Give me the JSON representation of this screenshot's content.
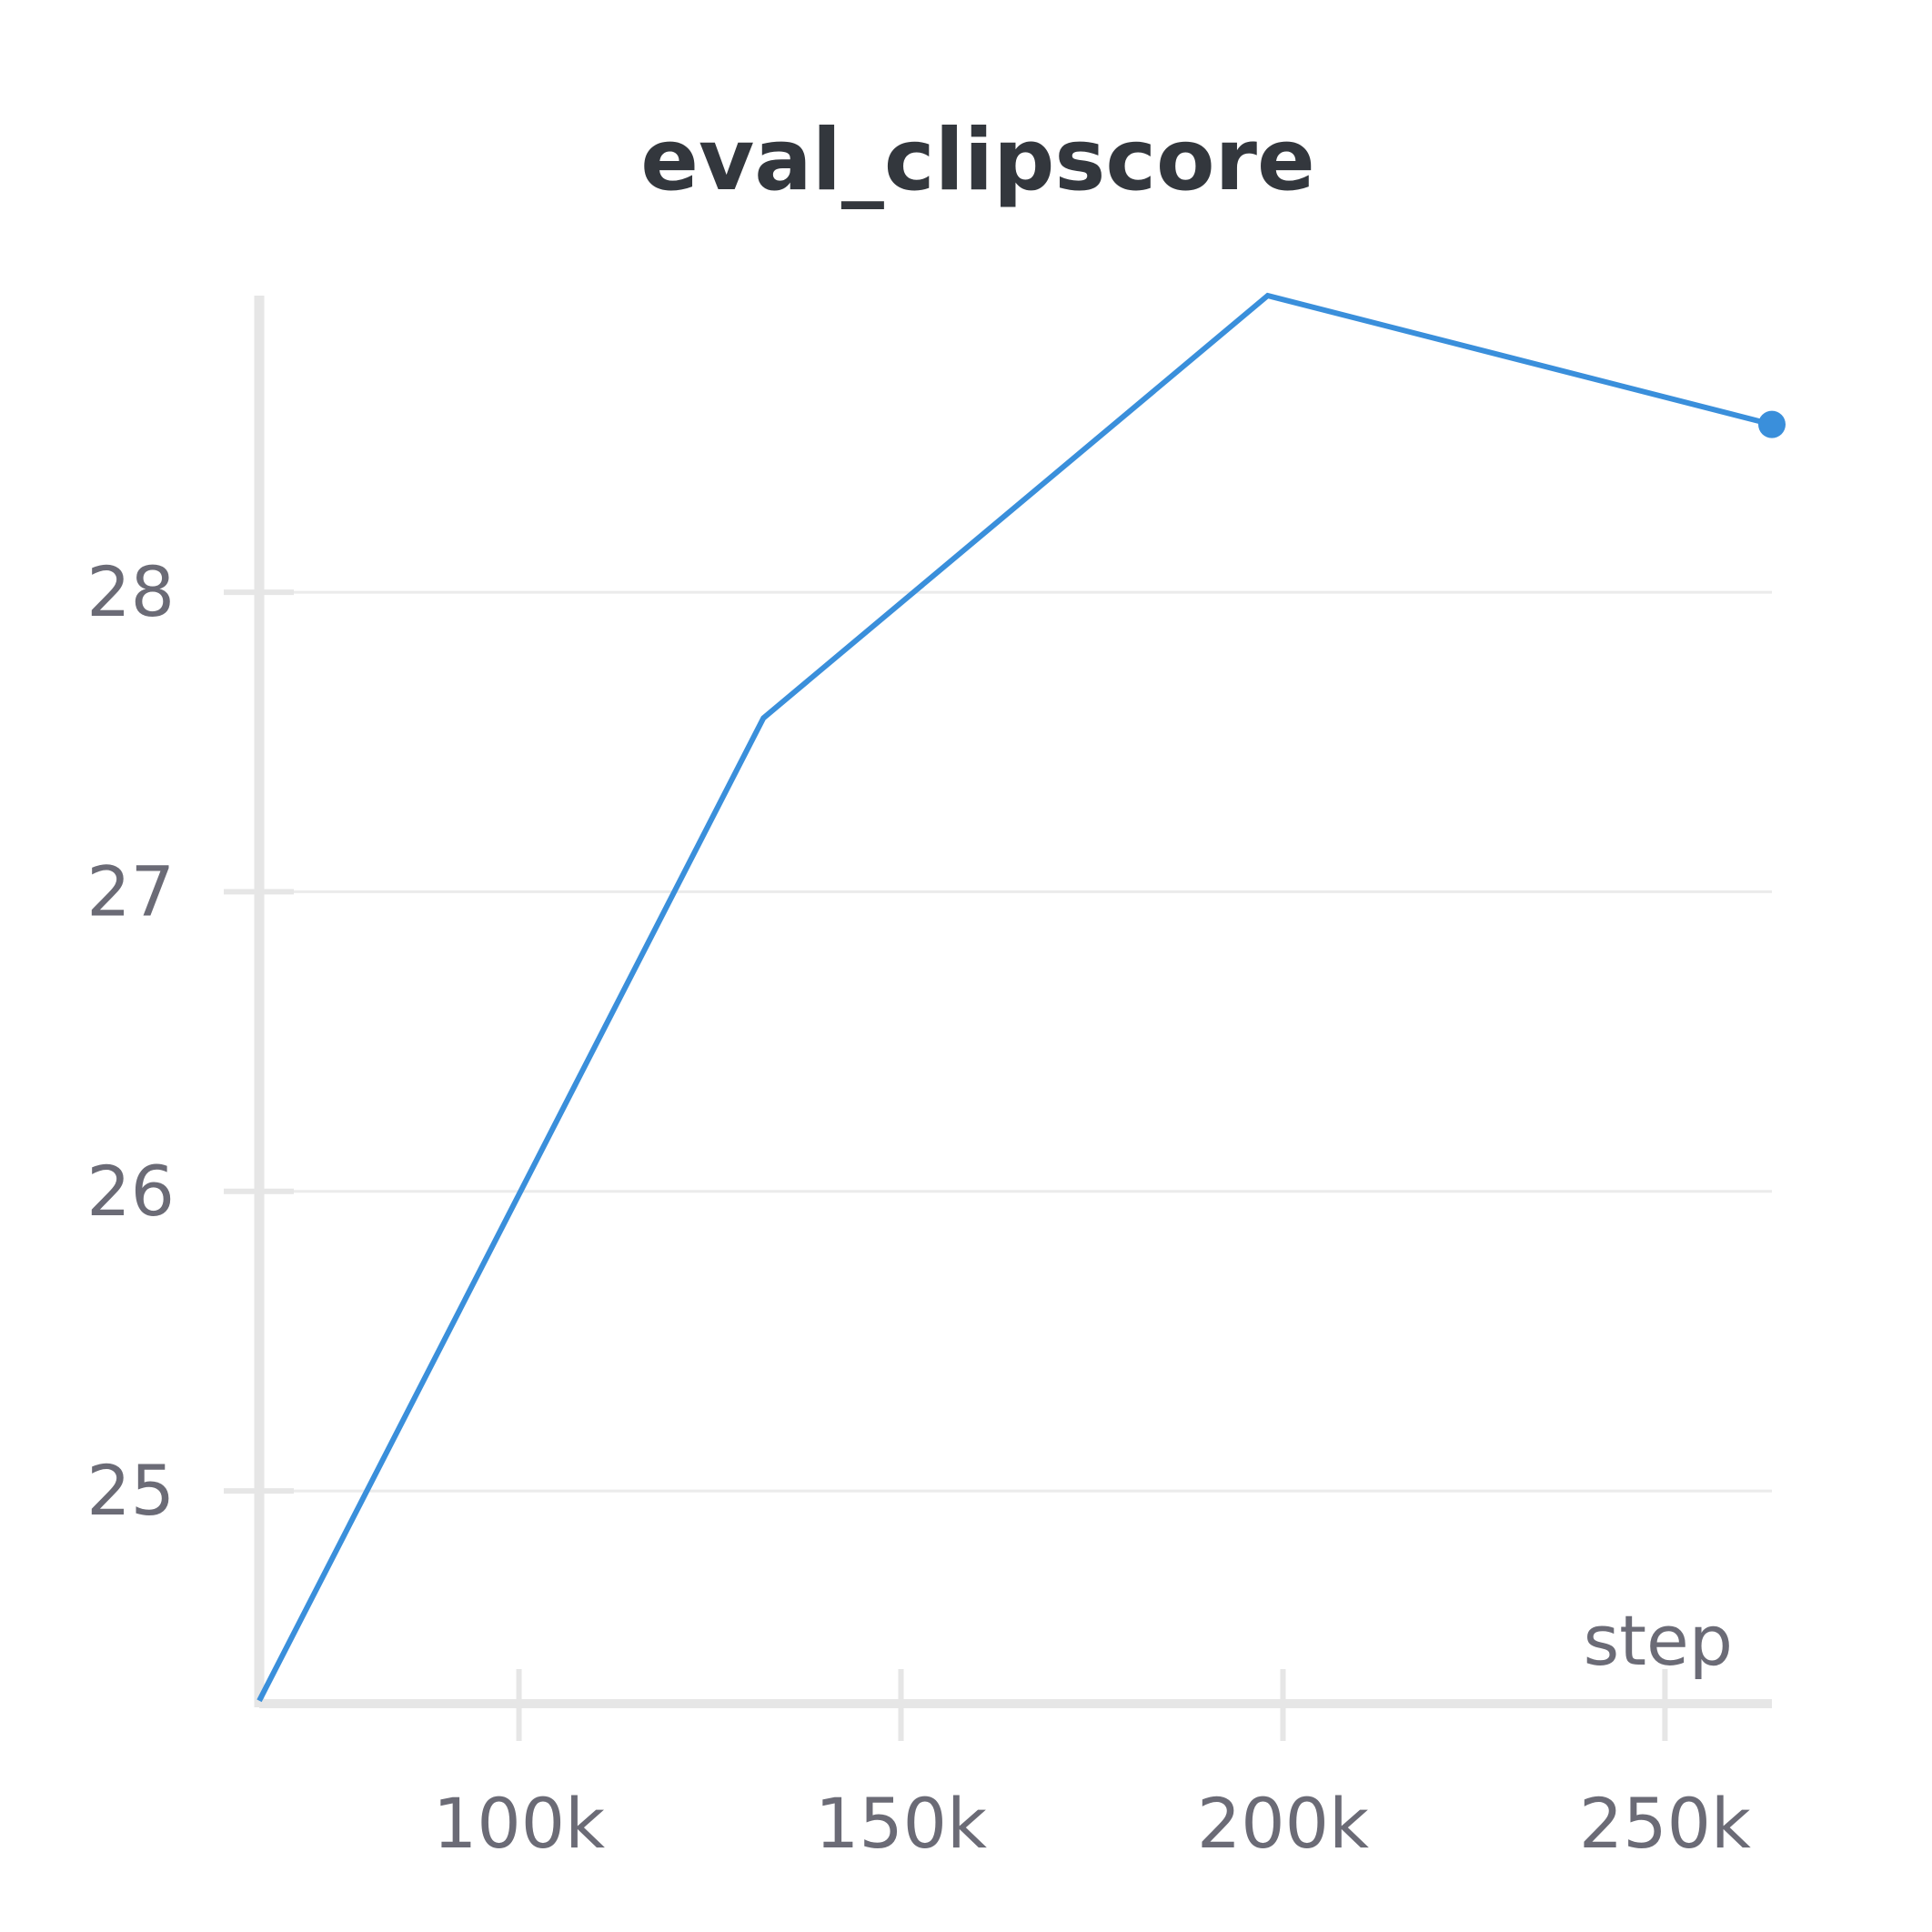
{
  "chart_data": {
    "type": "line",
    "title": "eval_clipscore",
    "xlabel": "step",
    "ylabel": "",
    "x_ticks": [
      100000,
      150000,
      200000,
      250000
    ],
    "x_tick_labels": [
      "100k",
      "150k",
      "200k",
      "250k"
    ],
    "y_ticks": [
      25,
      26,
      27,
      28
    ],
    "y_tick_labels": [
      "25",
      "26",
      "27",
      "28"
    ],
    "xlim": [
      66000,
      264000
    ],
    "ylim": [
      24.29,
      28.99
    ],
    "grid": "horizontal",
    "legend": "none",
    "series": [
      {
        "color": "#3a8fdb",
        "x": [
          66000,
          132000,
          198000,
          264000
        ],
        "y": [
          24.3,
          27.58,
          28.99,
          28.56
        ]
      }
    ]
  },
  "colors": {
    "line": "#3a8fdb",
    "axis": "#e6e6e6",
    "grid": "#ebebeb",
    "title": "#33373d",
    "tick_text": "#6b6b76"
  }
}
